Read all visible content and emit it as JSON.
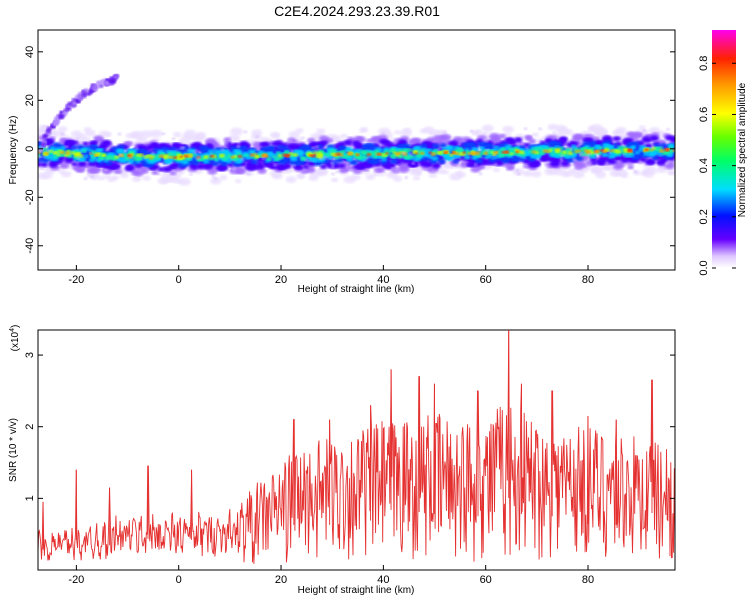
{
  "title": "C2E4.2024.293.23.39.R01",
  "colors": {
    "snr_line": "#e53030",
    "axis": "#000000"
  },
  "chart_data": [
    {
      "type": "heatmap",
      "xlabel": "Height of straight line (km)",
      "ylabel": "Frequency (Hz)",
      "xlim": [
        -27.5,
        97
      ],
      "ylim": [
        -50,
        49
      ],
      "xticks": [
        -20,
        0,
        20,
        40,
        60,
        80
      ],
      "xtick_labels": [
        "-20",
        "0",
        "20",
        "40",
        "60",
        "80"
      ],
      "yticks": [
        -40,
        -20,
        0,
        20,
        40
      ],
      "ytick_labels": [
        "-40",
        "-20",
        "0",
        "20",
        "40"
      ],
      "colorbar": {
        "label": "Normalized spectral amplitude",
        "range": [
          0,
          0.93
        ],
        "ticks": [
          0.0,
          0.2,
          0.4,
          0.6,
          0.8
        ],
        "tick_labels": [
          "0.0",
          "0.2",
          "0.4",
          "0.6",
          "0.8"
        ]
      },
      "main_band": {
        "center_hz": [
          [
            -27.5,
            -1.5
          ],
          [
            -5,
            -3.5
          ],
          [
            97,
            -0.5
          ]
        ],
        "half_width_hz": 3.5
      },
      "secondary_streak": [
        [
          -27,
          0
        ],
        [
          -25,
          9
        ],
        [
          -22,
          16
        ],
        [
          -19,
          22
        ],
        [
          -16,
          26
        ],
        [
          -12,
          29
        ]
      ]
    },
    {
      "type": "line",
      "xlabel": "Height of straight line (km)",
      "ylabel": "SNR (10 * v/v)",
      "y_multiplier": "(x10",
      "y_multiplier_exp": "4",
      "y_multiplier_close": ")",
      "xlim": [
        -27.5,
        97
      ],
      "ylim": [
        0,
        3.35
      ],
      "xticks": [
        -20,
        0,
        20,
        40,
        60,
        80
      ],
      "xtick_labels": [
        "-20",
        "0",
        "20",
        "40",
        "60",
        "80"
      ],
      "yticks": [
        1,
        2,
        3
      ],
      "ytick_labels": [
        "1",
        "2",
        "3"
      ],
      "envelope": [
        [
          -27.5,
          0.6
        ],
        [
          -20,
          0.7
        ],
        [
          -13,
          0.9
        ],
        [
          -5,
          0.95
        ],
        [
          3,
          0.95
        ],
        [
          12,
          1.0
        ],
        [
          18,
          1.4
        ],
        [
          24,
          1.75
        ],
        [
          32,
          1.9
        ],
        [
          40,
          2.1
        ],
        [
          50,
          2.2
        ],
        [
          58,
          2.1
        ],
        [
          64,
          2.4
        ],
        [
          72,
          2.05
        ],
        [
          80,
          2.05
        ],
        [
          88,
          1.9
        ],
        [
          97,
          1.75
        ]
      ],
      "peaks": [
        [
          -26.5,
          0.95
        ],
        [
          -20,
          1.4
        ],
        [
          -13.5,
          1.15
        ],
        [
          -6,
          1.45
        ],
        [
          2.5,
          1.4
        ],
        [
          22.5,
          2.1
        ],
        [
          29.5,
          2.1
        ],
        [
          37.5,
          2.3
        ],
        [
          41.5,
          2.8
        ],
        [
          47,
          2.7
        ],
        [
          50,
          2.6
        ],
        [
          58.5,
          2.5
        ],
        [
          64.5,
          3.35
        ],
        [
          67,
          2.6
        ],
        [
          73,
          2.5
        ],
        [
          80,
          2.15
        ],
        [
          85.5,
          2.1
        ],
        [
          92.5,
          2.65
        ]
      ]
    }
  ]
}
